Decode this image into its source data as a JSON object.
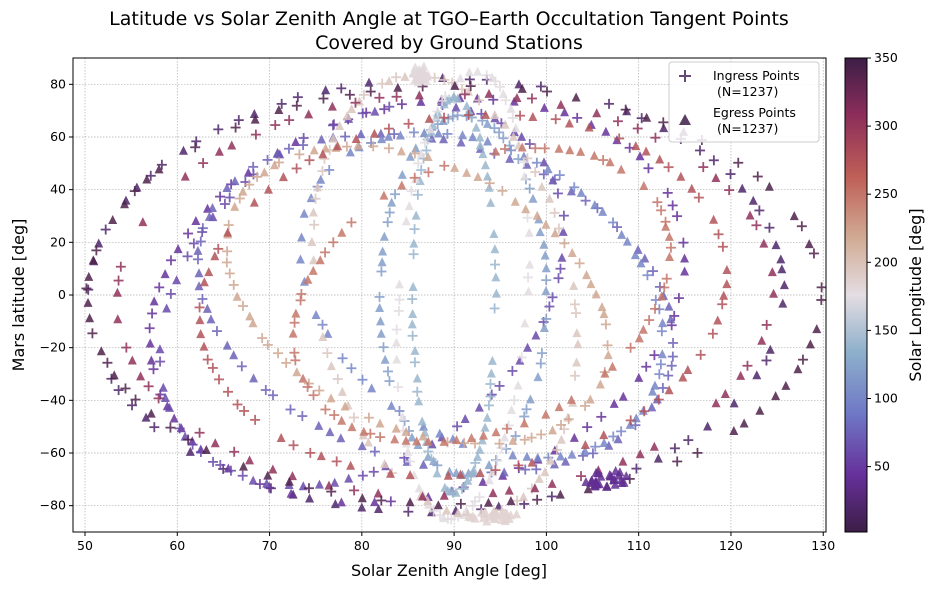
{
  "chart_data": {
    "type": "scatter",
    "title": "Latitude vs Solar Zenith Angle at TGO–Earth Occultation Tangent Points",
    "subtitle": "Covered by Ground Stations",
    "xlabel": "Solar Zenith Angle [deg]",
    "ylabel": "Mars latitude [deg]",
    "colorbar_label": "Solar Longitude [deg]",
    "xlim": [
      48.7,
      130.3
    ],
    "ylim": [
      -90,
      90
    ],
    "colorbar_range": [
      2,
      350
    ],
    "xticks": [
      "50",
      "60",
      "70",
      "80",
      "90",
      "100",
      "110",
      "120",
      "130"
    ],
    "yticks": [
      "−80",
      "−60",
      "−40",
      "−20",
      "0",
      "20",
      "40",
      "60",
      "80"
    ],
    "colorbar_ticks": [
      "50",
      "100",
      "150",
      "200",
      "250",
      "300",
      "350"
    ],
    "grid": true,
    "legend_position": "top-right",
    "colormap": "twilight_shifted",
    "series": [
      {
        "name": "Ingress Points",
        "count_label": "(N=1237)",
        "marker": "plus"
      },
      {
        "name": "Egress Points",
        "count_label": "(N=1237)",
        "marker": "triangle"
      }
    ],
    "orbits": [
      {
        "ls": 20,
        "cx": 88,
        "cy": 0,
        "ax": 38,
        "ay": 83,
        "rot": -0.18
      },
      {
        "ls": 45,
        "cx": 86,
        "cy": -2,
        "ax": 29,
        "ay": 82,
        "rot": -0.42
      },
      {
        "ls": 60,
        "cx": 80,
        "cy": 0,
        "ax": 21,
        "ay": 77,
        "rot": -0.38
      },
      {
        "ls": 75,
        "cx": 88,
        "cy": -3,
        "ax": 26,
        "ay": 72,
        "rot": 0.55
      },
      {
        "ls": 100,
        "cx": 93,
        "cy": 0,
        "ax": 19,
        "ay": 66,
        "rot": 0.4
      },
      {
        "ls": 120,
        "cx": 91,
        "cy": 0,
        "ax": 9,
        "ay": 68,
        "rot": 0.0
      },
      {
        "ls": 140,
        "cx": 90,
        "cy": 0,
        "ax": 4.5,
        "ay": 75,
        "rot": 0.0
      },
      {
        "ls": 175,
        "cx": 91,
        "cy": 0,
        "ax": 7,
        "ay": 85,
        "rot": -0.05
      },
      {
        "ls": 195,
        "cx": 89,
        "cy": 0,
        "ax": 14,
        "ay": 84,
        "rot": 0.12
      },
      {
        "ls": 220,
        "cx": 86,
        "cy": 0,
        "ax": 20,
        "ay": 64,
        "rot": 0.55
      },
      {
        "ls": 250,
        "cx": 93,
        "cy": 0,
        "ax": 20,
        "ay": 62,
        "rot": -0.5
      },
      {
        "ls": 275,
        "cx": 91,
        "cy": 0,
        "ax": 29,
        "ay": 72,
        "rot": -0.38
      },
      {
        "ls": 305,
        "cx": 89,
        "cy": 0,
        "ax": 36,
        "ay": 78,
        "rot": -0.25
      },
      {
        "ls": 340,
        "cx": 90,
        "cy": 0,
        "ax": 40,
        "ay": 80,
        "rot": -0.15
      }
    ],
    "clusters": [
      {
        "ls": 40,
        "x": 106.5,
        "y": -70,
        "rx": 2.4,
        "ry": 3.5
      },
      {
        "ls": 185,
        "x": 94.5,
        "y": -84,
        "rx": 3.0,
        "ry": 2.2
      },
      {
        "ls": 180,
        "x": 86.5,
        "y": 84,
        "rx": 1.2,
        "ry": 3.5
      }
    ]
  }
}
